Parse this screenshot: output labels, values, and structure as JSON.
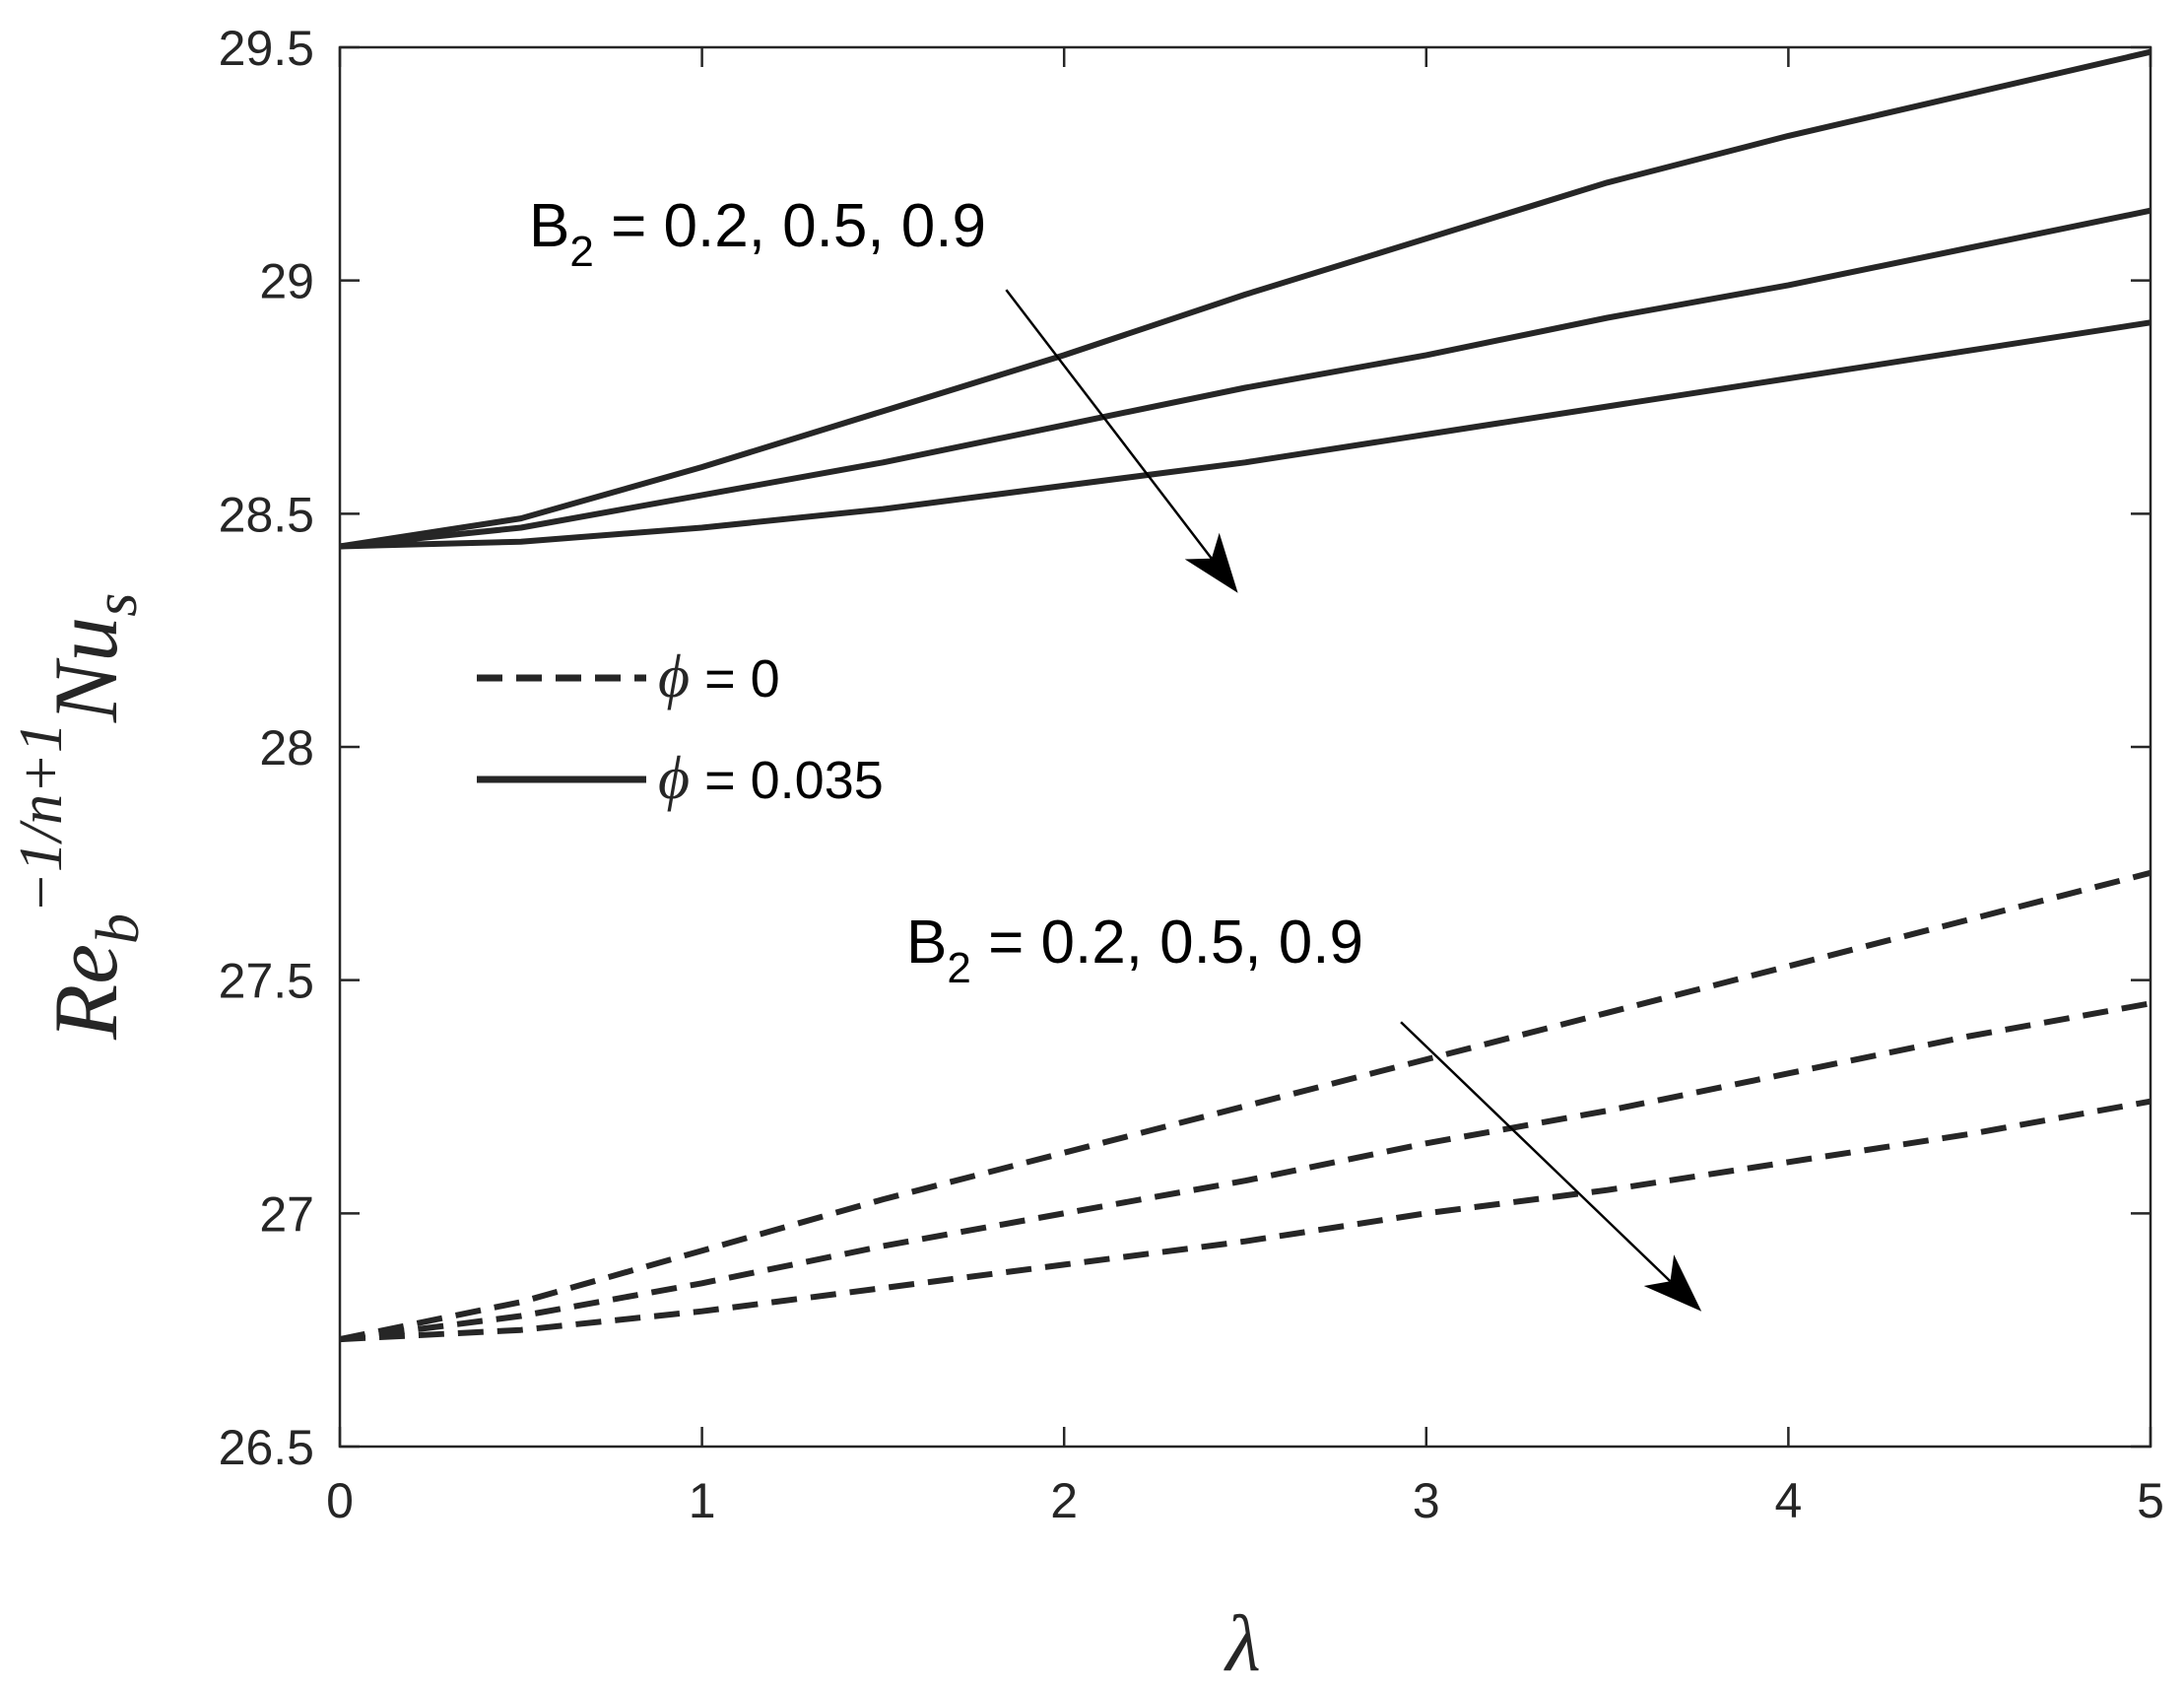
{
  "chart_data": {
    "type": "line",
    "xlabel": "λ",
    "ylabel": {
      "base": "Re",
      "base_sub": "b",
      "exponent": "−1/n+1",
      "tail": "Nu",
      "tail_sub": "s"
    },
    "xlim": [
      0,
      5
    ],
    "ylim": [
      26.5,
      29.5
    ],
    "x_ticks": [
      "0",
      "1",
      "2",
      "3",
      "4",
      "5"
    ],
    "y_ticks": [
      "26.5",
      "27",
      "27.5",
      "28",
      "28.5",
      "29",
      "29.5"
    ],
    "grid": false,
    "x": [
      0,
      0.5,
      1,
      1.5,
      2,
      2.5,
      3,
      3.5,
      4,
      4.5,
      5
    ],
    "series": [
      {
        "group": "phi_0.035",
        "style": "solid",
        "values": [
          28.43,
          28.49,
          28.6,
          28.72,
          28.84,
          28.97,
          29.09,
          29.21,
          29.31,
          29.4,
          29.49
        ]
      },
      {
        "group": "phi_0.035",
        "style": "solid",
        "values": [
          28.43,
          28.47,
          28.54,
          28.61,
          28.69,
          28.77,
          28.84,
          28.92,
          28.99,
          29.07,
          29.15
        ]
      },
      {
        "group": "phi_0.035",
        "style": "solid",
        "values": [
          28.43,
          28.44,
          28.47,
          28.51,
          28.56,
          28.61,
          28.67,
          28.73,
          28.79,
          28.85,
          28.91
        ]
      },
      {
        "group": "phi_0",
        "style": "dashed",
        "values": [
          26.73,
          26.81,
          26.92,
          27.03,
          27.13,
          27.23,
          27.33,
          27.43,
          27.53,
          27.63,
          27.73
        ]
      },
      {
        "group": "phi_0",
        "style": "dashed",
        "values": [
          26.73,
          26.78,
          26.85,
          26.93,
          27.0,
          27.07,
          27.15,
          27.22,
          27.3,
          27.38,
          27.45
        ]
      },
      {
        "group": "phi_0",
        "style": "dashed",
        "values": [
          26.73,
          26.75,
          26.79,
          26.84,
          26.89,
          26.94,
          27.0,
          27.05,
          27.11,
          27.17,
          27.24
        ]
      }
    ],
    "legend": {
      "location": "center-left",
      "entries": [
        {
          "symbol": "ϕ",
          "text": " = 0",
          "style": "dashed"
        },
        {
          "symbol": "ϕ",
          "text": " = 0.035",
          "style": "solid"
        }
      ]
    },
    "annotations": [
      {
        "id": "upper",
        "main": "B",
        "sub": "2",
        "rest": " = 0.2, 0.5, 0.9",
        "arrow_from": [
          1.84,
          28.98
        ],
        "arrow_to": [
          2.48,
          28.33
        ]
      },
      {
        "id": "lower",
        "main": "B",
        "sub": "2",
        "rest": " = 0.2, 0.5, 0.9",
        "arrow_from": [
          2.93,
          27.41
        ],
        "arrow_to": [
          3.76,
          26.79
        ]
      }
    ],
    "colors": {
      "line": "#262626",
      "axis": "#262626",
      "arrow": "#000000"
    }
  }
}
